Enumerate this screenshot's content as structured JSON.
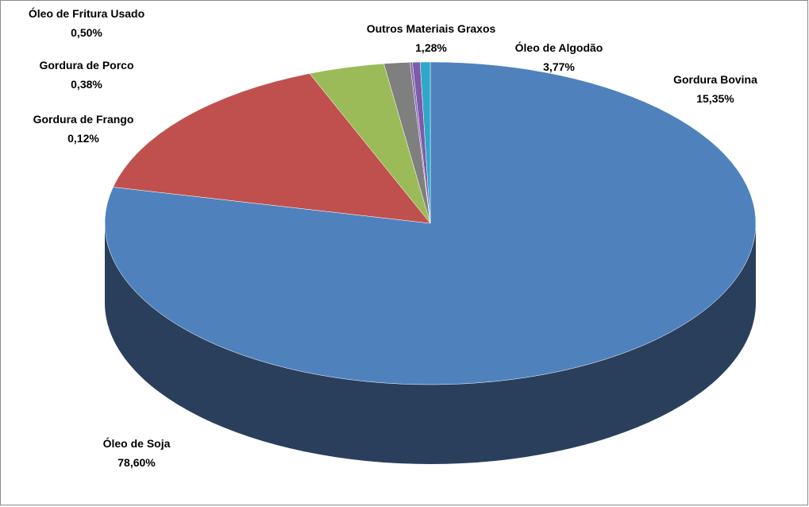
{
  "chart_data": {
    "type": "pie",
    "style": "3d",
    "title": "",
    "slices": [
      {
        "label": "Óleo de Soja",
        "value": 78.6,
        "display": "78,60%",
        "color": "#4f81bd",
        "side_color": "#2a3f5c"
      },
      {
        "label": "Gordura Bovina",
        "value": 15.35,
        "display": "15,35%",
        "color": "#c0504d",
        "side_color": "#7a2f2d"
      },
      {
        "label": "Óleo de Algodão",
        "value": 3.77,
        "display": "3,77%",
        "color": "#9bbb59",
        "side_color": "#5f7433"
      },
      {
        "label": "Outros Materiais Graxos",
        "value": 1.28,
        "display": "1,28%",
        "color": "#7f7f7f",
        "side_color": "#4a4a4a"
      },
      {
        "label": "Gordura de Frango",
        "value": 0.12,
        "display": "0,12%",
        "color": "#8a6bb5",
        "side_color": "#4e3a6c"
      },
      {
        "label": "Gordura de Porco",
        "value": 0.38,
        "display": "0,38%",
        "color": "#7e5aa8",
        "side_color": "#4a3468"
      },
      {
        "label": "Óleo de Fritura Usado",
        "value": 0.5,
        "display": "0,50%",
        "color": "#2fa7c9",
        "side_color": "#1d6a80"
      }
    ]
  }
}
